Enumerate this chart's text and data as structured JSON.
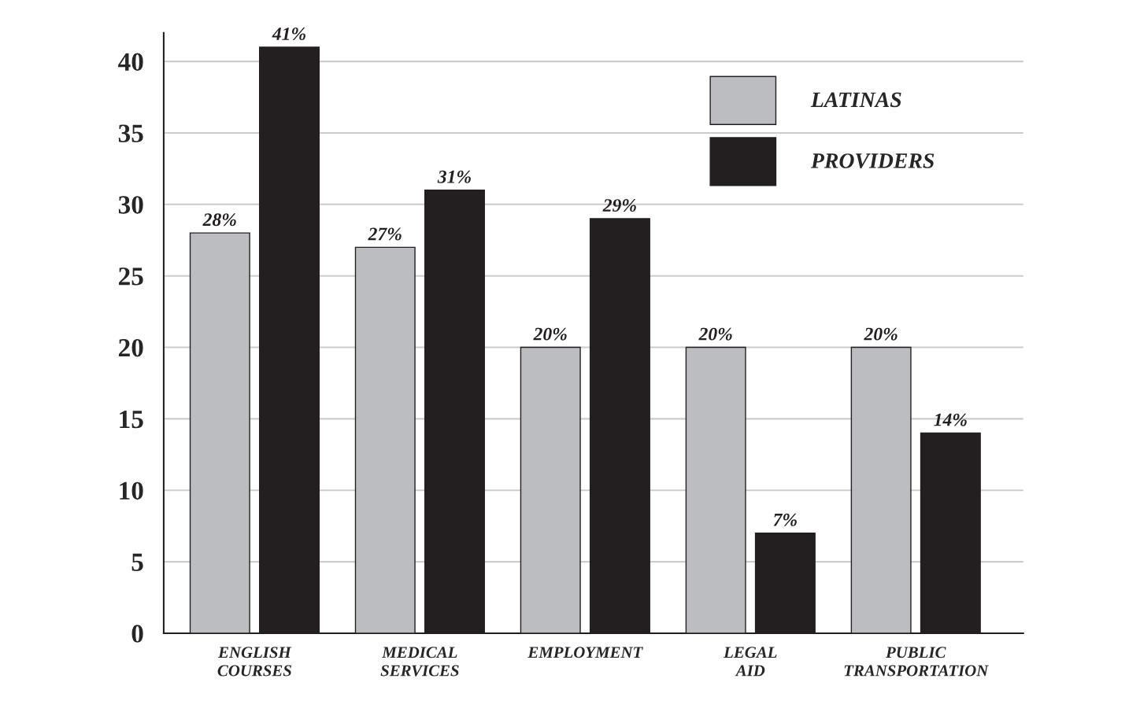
{
  "chart_data": {
    "type": "bar",
    "categories": [
      "ENGLISH\nCOURSES",
      "MEDICAL\nSERVICES",
      "EMPLOYMENT",
      "LEGAL\nAID",
      "PUBLIC\nTRANSPORTATION"
    ],
    "series": [
      {
        "name": "LATINAS",
        "color": "#bcbdc0",
        "values": [
          28,
          27,
          20,
          20,
          20
        ],
        "value_labels": [
          "28%",
          "27%",
          "20%",
          "20%",
          "20%"
        ]
      },
      {
        "name": "PROVIDERS",
        "color": "#231f20",
        "values": [
          41,
          31,
          29,
          7,
          14
        ],
        "value_labels": [
          "41%",
          "31%",
          "29%",
          "7%",
          "14%"
        ]
      }
    ],
    "ylim": [
      0,
      42
    ],
    "yticks": [
      0,
      5,
      10,
      15,
      20,
      25,
      30,
      35,
      40
    ],
    "grid": "y",
    "legend": "top right"
  }
}
